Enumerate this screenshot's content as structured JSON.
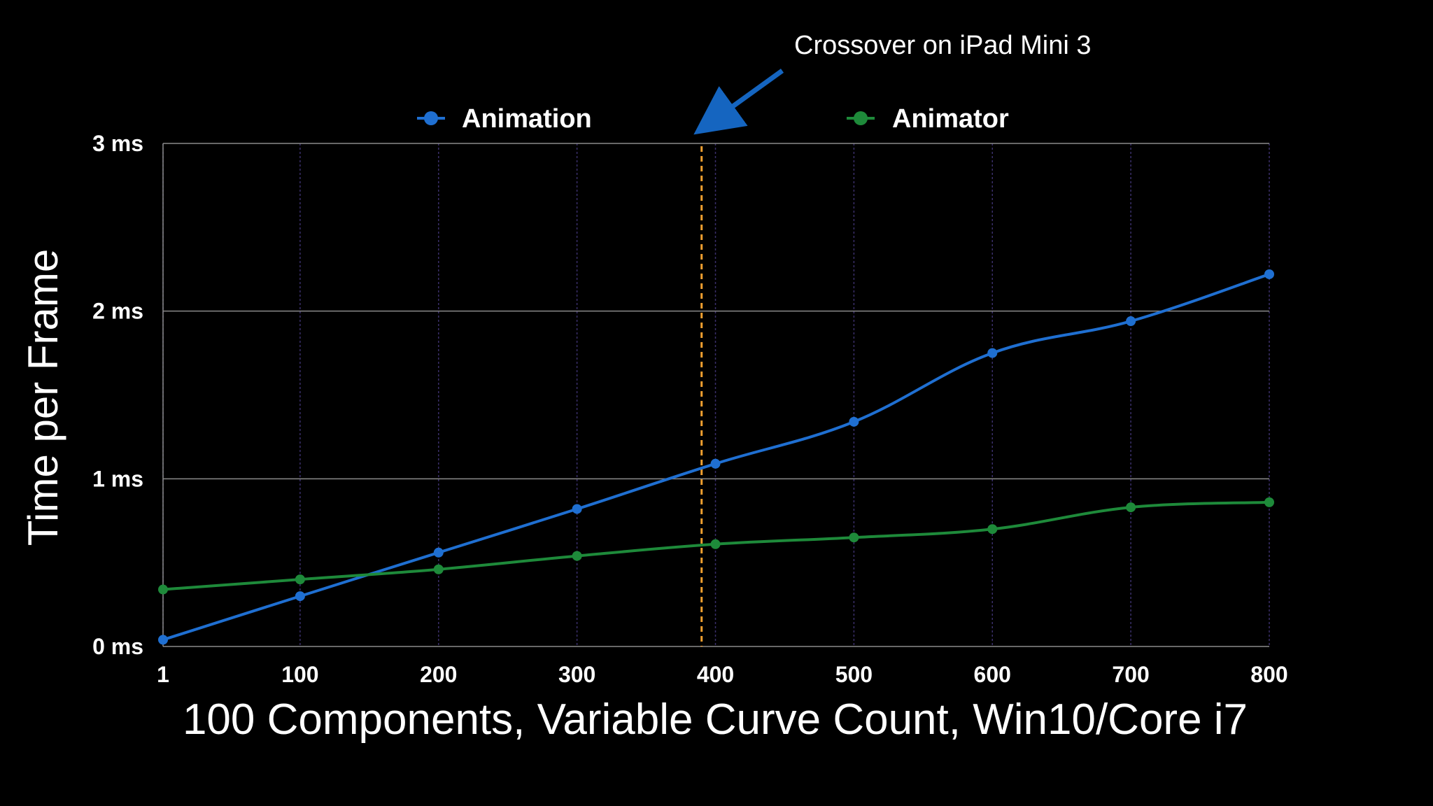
{
  "colors": {
    "background": "#000000",
    "text": "#ffffff",
    "grid_major": "#8a8a8a",
    "grid_minor": "#3a2f6a",
    "animation": "#1f6fd1",
    "animator": "#1e8a3a",
    "crossover": "#f0a030",
    "arrow": "#1565c0"
  },
  "chart_data": {
    "type": "line",
    "xlabel": "100 Components, Variable Curve Count, Win10/Core i7",
    "ylabel": "Time per Frame",
    "x": [
      1,
      100,
      200,
      300,
      400,
      500,
      600,
      700,
      800
    ],
    "x_tick_labels": [
      "1",
      "100",
      "200",
      "300",
      "400",
      "500",
      "600",
      "700",
      "800"
    ],
    "y_ticks": [
      0,
      1,
      2,
      3
    ],
    "y_tick_labels": [
      "0 ms",
      "1 ms",
      "2 ms",
      "3 ms"
    ],
    "xlim": [
      1,
      800
    ],
    "ylim": [
      0,
      3
    ],
    "grid": true,
    "legend_position": "top",
    "series": [
      {
        "name": "Animation",
        "color": "#1f6fd1",
        "values": [
          0.04,
          0.3,
          0.56,
          0.82,
          1.09,
          1.34,
          1.75,
          1.94,
          2.22
        ]
      },
      {
        "name": "Animator",
        "color": "#1e8a3a",
        "values": [
          0.34,
          0.4,
          0.46,
          0.54,
          0.61,
          0.65,
          0.7,
          0.83,
          0.86
        ]
      }
    ],
    "annotations": [
      {
        "text": "Crossover on iPad Mini 3",
        "x": 390
      }
    ]
  }
}
